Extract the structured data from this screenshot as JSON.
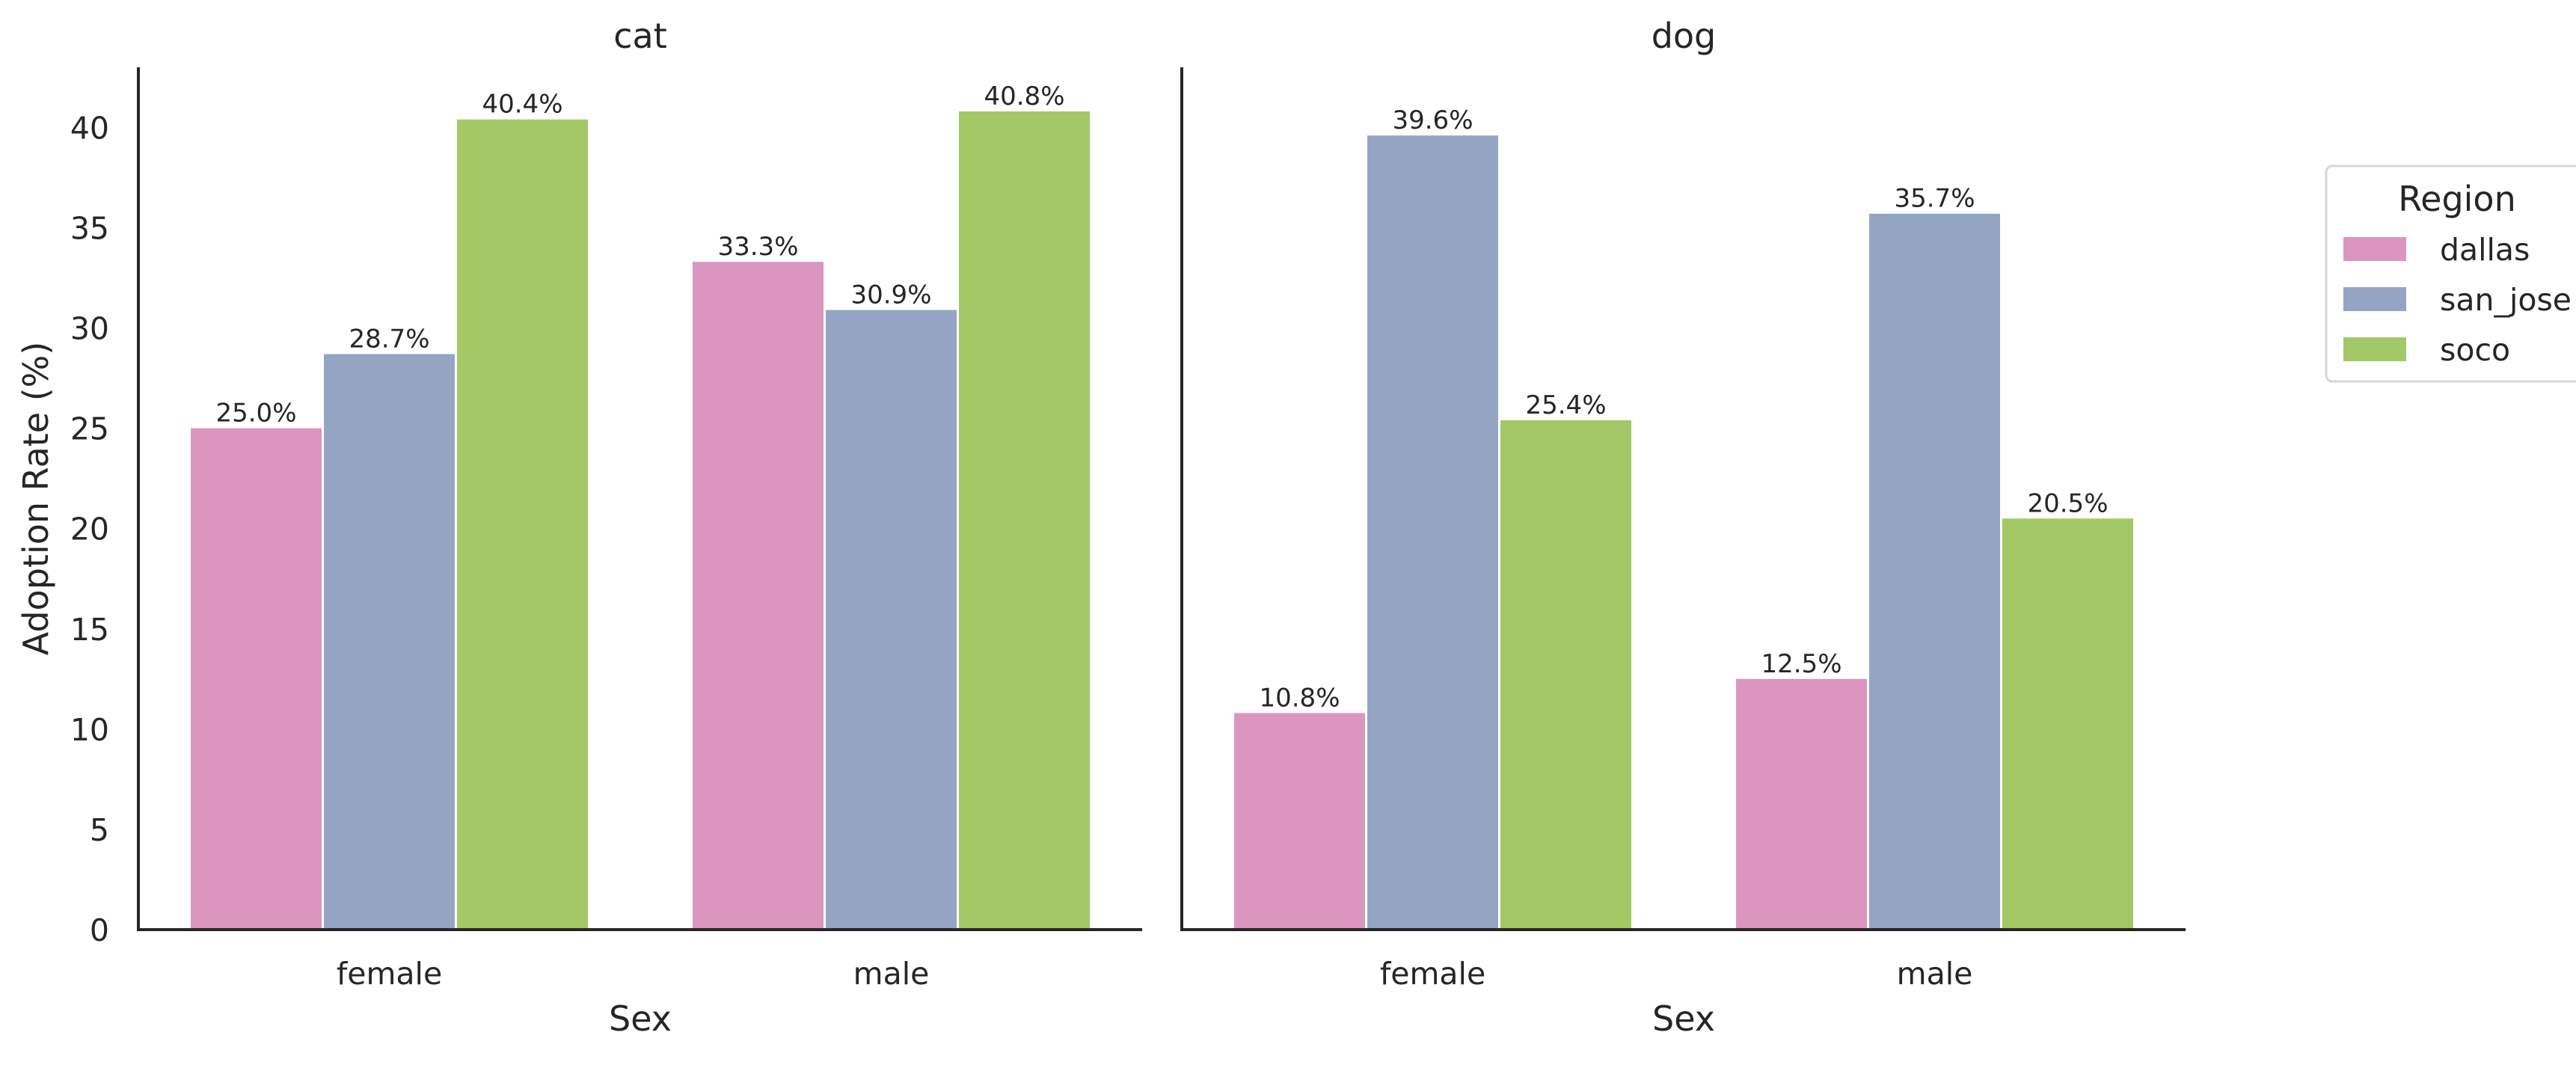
{
  "chart_data": {
    "type": "bar",
    "facet_variable": "animal",
    "panels": [
      {
        "title": "cat",
        "xlabel": "Sex",
        "categories": [
          "female",
          "male"
        ],
        "series": [
          {
            "name": "dallas",
            "values": [
              25.0,
              33.3
            ],
            "labels": [
              "25.0%",
              "33.3%"
            ]
          },
          {
            "name": "san_jose",
            "values": [
              28.7,
              30.9
            ],
            "labels": [
              "28.7%",
              "30.9%"
            ]
          },
          {
            "name": "soco",
            "values": [
              40.4,
              40.8
            ],
            "labels": [
              "40.4%",
              "40.8%"
            ]
          }
        ]
      },
      {
        "title": "dog",
        "xlabel": "Sex",
        "categories": [
          "female",
          "male"
        ],
        "series": [
          {
            "name": "dallas",
            "values": [
              10.8,
              12.5
            ],
            "labels": [
              "10.8%",
              "12.5%"
            ]
          },
          {
            "name": "san_jose",
            "values": [
              39.6,
              35.7
            ],
            "labels": [
              "39.6%",
              "35.7%"
            ]
          },
          {
            "name": "soco",
            "values": [
              25.4,
              20.5
            ],
            "labels": [
              "25.4%",
              "20.5%"
            ]
          }
        ]
      }
    ],
    "ylabel": "Adoption Rate (%)",
    "ylim": [
      0,
      43
    ],
    "yticks": [
      0,
      5,
      10,
      15,
      20,
      25,
      30,
      35,
      40
    ],
    "grid": false,
    "legend": {
      "title": "Region",
      "placement": "right",
      "entries": [
        "dallas",
        "san_jose",
        "soco"
      ]
    },
    "colors": {
      "dallas": "#db96bf",
      "san_jose": "#94a5c4",
      "soco": "#a2c965"
    }
  }
}
